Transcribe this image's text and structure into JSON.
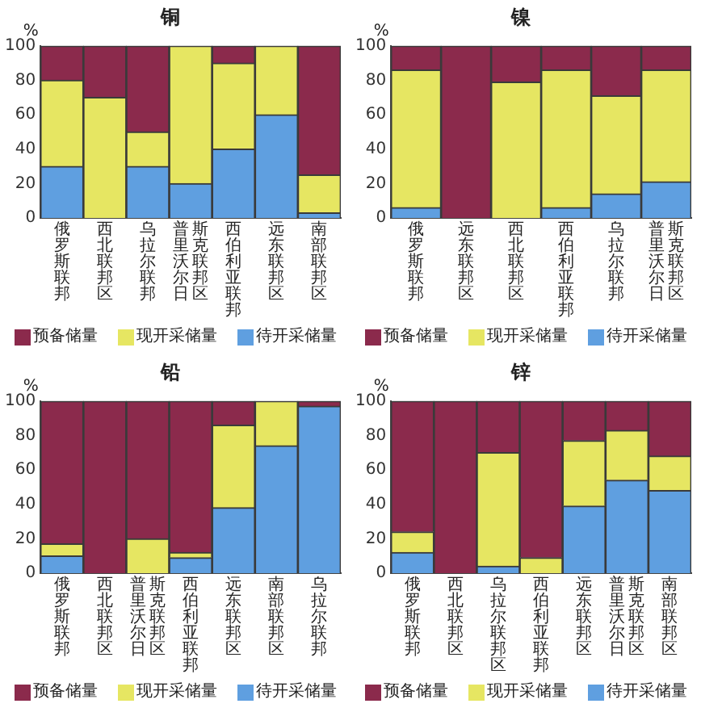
{
  "chart_data": [
    {
      "type": "bar",
      "title": "铜",
      "ylabel": "%",
      "stacked": true,
      "legend": "bottom",
      "ylim": [
        0,
        100
      ],
      "yticks": [
        0,
        20,
        40,
        60,
        80,
        100
      ],
      "categories": [
        "俄罗斯联邦",
        "西北联邦区",
        "乌拉尔联邦",
        "普里沃尔日斯克联邦区",
        "西伯利亚联邦",
        "远东联邦区",
        "南部联邦区"
      ],
      "series": [
        {
          "name": "待开采储量",
          "color": "#5f9fe0",
          "values": [
            30,
            0,
            30,
            20,
            40,
            60,
            3
          ]
        },
        {
          "name": "现开采储量",
          "color": "#e6e662",
          "values": [
            50,
            70,
            20,
            80,
            50,
            40,
            22
          ]
        },
        {
          "name": "预备储量",
          "color": "#8b2a4c",
          "values": [
            20,
            30,
            50,
            0,
            10,
            0,
            75
          ]
        }
      ]
    },
    {
      "type": "bar",
      "title": "镍",
      "ylabel": "%",
      "stacked": true,
      "legend": "bottom",
      "ylim": [
        0,
        100
      ],
      "yticks": [
        0,
        20,
        40,
        60,
        80,
        100
      ],
      "categories": [
        "俄罗斯联邦",
        "远东联邦区",
        "西北联邦区",
        "西伯利亚联邦",
        "乌拉尔联邦",
        "普里沃尔日斯克联邦区"
      ],
      "series": [
        {
          "name": "待开采储量",
          "color": "#5f9fe0",
          "values": [
            6,
            0,
            0,
            6,
            14,
            21
          ]
        },
        {
          "name": "现开采储量",
          "color": "#e6e662",
          "values": [
            80,
            0,
            79,
            80,
            57,
            65
          ]
        },
        {
          "name": "预备储量",
          "color": "#8b2a4c",
          "values": [
            14,
            100,
            21,
            14,
            29,
            14
          ]
        }
      ]
    },
    {
      "type": "bar",
      "title": "铅",
      "ylabel": "%",
      "stacked": true,
      "legend": "bottom",
      "ylim": [
        0,
        100
      ],
      "yticks": [
        0,
        20,
        40,
        60,
        80,
        100
      ],
      "categories": [
        "俄罗斯联邦",
        "西北联邦区",
        "普里沃尔日斯克联邦区",
        "西伯利亚联邦",
        "远东联邦区",
        "南部联邦区",
        "乌拉尔联邦"
      ],
      "series": [
        {
          "name": "待开采储量",
          "color": "#5f9fe0",
          "values": [
            10,
            0,
            0,
            9,
            38,
            74,
            97
          ]
        },
        {
          "name": "现开采储量",
          "color": "#e6e662",
          "values": [
            7,
            0,
            20,
            3,
            48,
            26,
            0
          ]
        },
        {
          "name": "预备储量",
          "color": "#8b2a4c",
          "values": [
            83,
            100,
            80,
            88,
            14,
            0,
            3
          ]
        }
      ]
    },
    {
      "type": "bar",
      "title": "锌",
      "ylabel": "%",
      "stacked": true,
      "legend": "bottom",
      "ylim": [
        0,
        100
      ],
      "yticks": [
        0,
        20,
        40,
        60,
        80,
        100
      ],
      "categories": [
        "俄罗斯联邦",
        "西北联邦区",
        "乌拉尔联邦区",
        "西伯利亚联邦",
        "远东联邦区",
        "普里沃尔日斯克联邦区",
        "南部联邦区"
      ],
      "series": [
        {
          "name": "待开采储量",
          "color": "#5f9fe0",
          "values": [
            12,
            0,
            4,
            0,
            39,
            54,
            48
          ]
        },
        {
          "name": "现开采储量",
          "color": "#e6e662",
          "values": [
            12,
            0,
            66,
            9,
            38,
            29,
            20
          ]
        },
        {
          "name": "预备储量",
          "color": "#8b2a4c",
          "values": [
            76,
            100,
            30,
            91,
            23,
            17,
            32
          ]
        }
      ]
    }
  ]
}
